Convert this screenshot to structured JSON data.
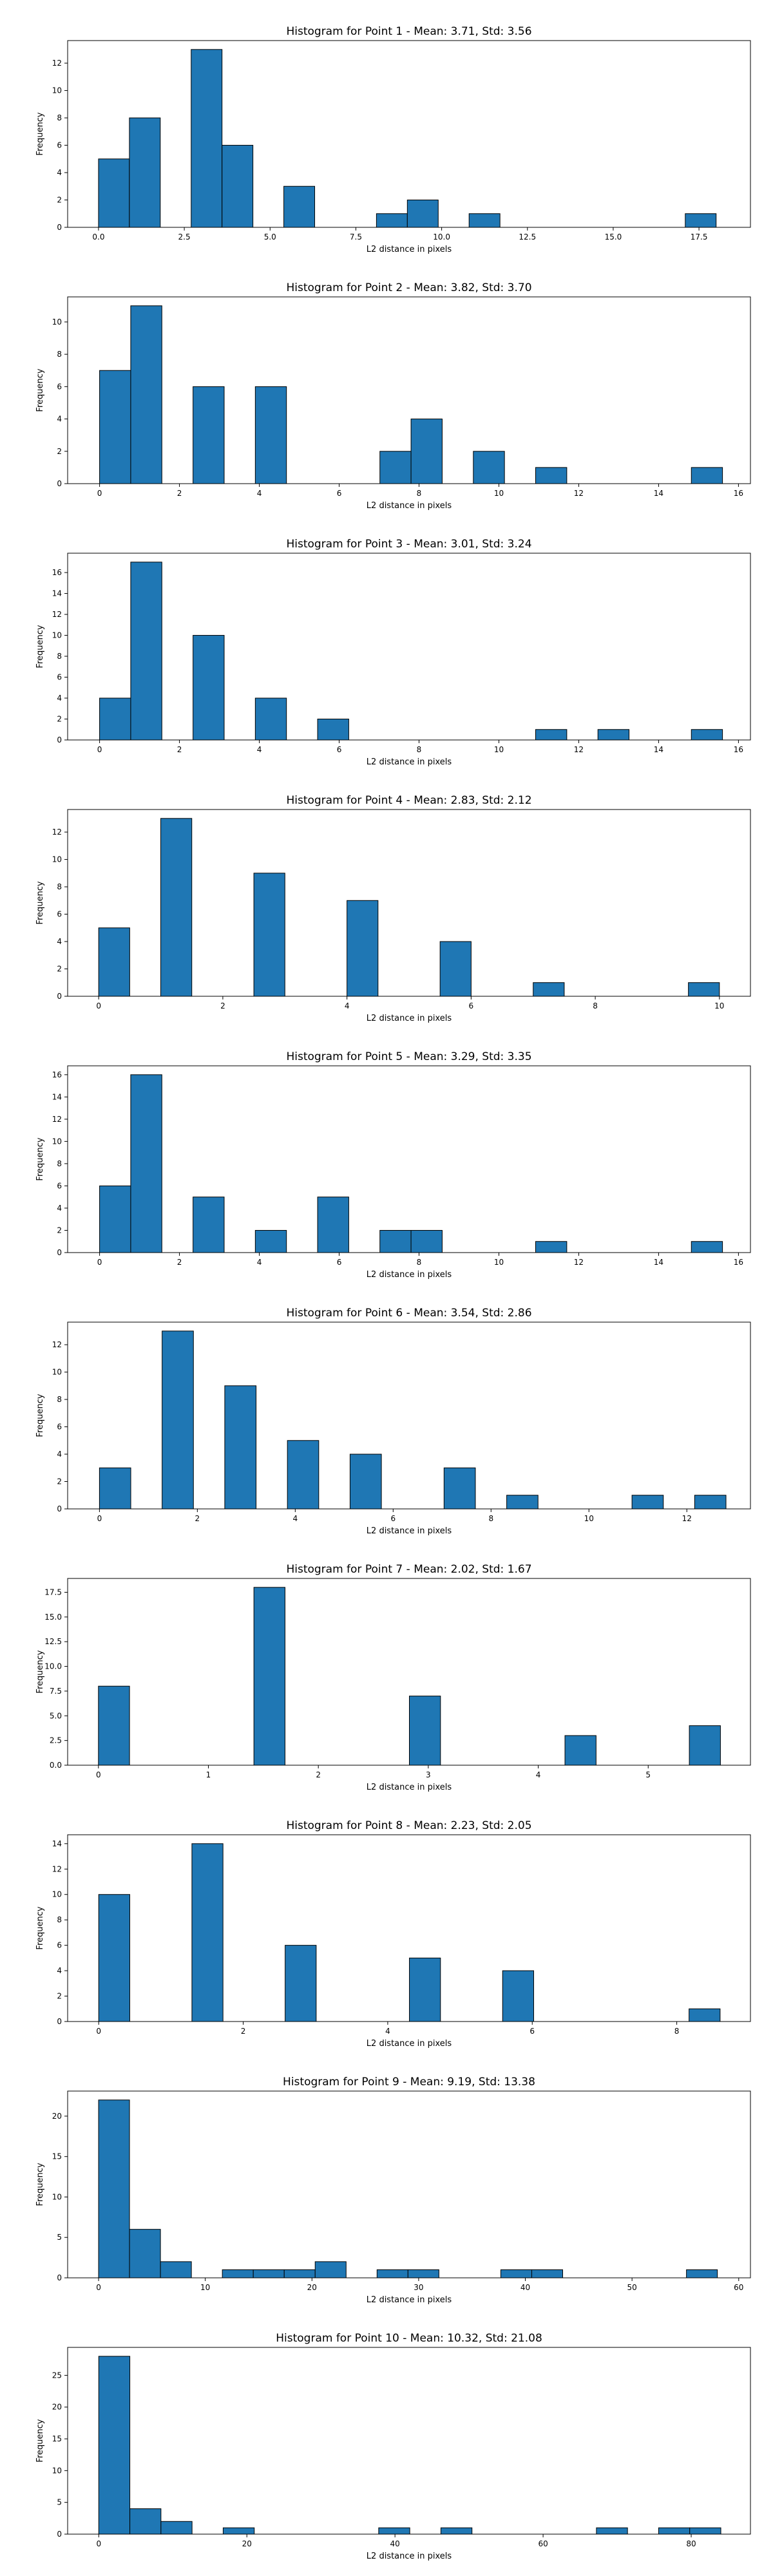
{
  "colors": {
    "bar_fill": "#1f77b4",
    "bar_edge": "#000000"
  },
  "chart_data": [
    {
      "type": "bar",
      "title": "Histogram for Point 1 - Mean: 3.71, Std: 3.56",
      "xlabel": "L2 distance in pixels",
      "ylabel": "Frequency",
      "xlim": [
        -0.9,
        19.0
      ],
      "ylim": [
        0,
        13.65
      ],
      "xticks": [
        0,
        2.5,
        5,
        7.5,
        10,
        12.5,
        15,
        17.5
      ],
      "xtick_labels": [
        "0.0",
        "2.5",
        "5.0",
        "7.5",
        "10.0",
        "12.5",
        "15.0",
        "17.5"
      ],
      "yticks": [
        0,
        2,
        4,
        6,
        8,
        10,
        12
      ],
      "ytick_labels": [
        "0",
        "2",
        "4",
        "6",
        "8",
        "10",
        "12"
      ],
      "bins": [
        {
          "x0": 0.0,
          "x1": 0.9,
          "count": 5
        },
        {
          "x0": 0.9,
          "x1": 1.8,
          "count": 8
        },
        {
          "x0": 2.7,
          "x1": 3.6,
          "count": 13
        },
        {
          "x0": 3.6,
          "x1": 4.5,
          "count": 6
        },
        {
          "x0": 5.4,
          "x1": 6.3,
          "count": 3
        },
        {
          "x0": 8.1,
          "x1": 9.0,
          "count": 1
        },
        {
          "x0": 9.0,
          "x1": 9.9,
          "count": 2
        },
        {
          "x0": 10.8,
          "x1": 11.7,
          "count": 1
        },
        {
          "x0": 17.1,
          "x1": 18.0,
          "count": 1
        }
      ]
    },
    {
      "type": "bar",
      "title": "Histogram for Point 2 - Mean: 3.82, Std: 3.70",
      "xlabel": "L2 distance in pixels",
      "ylabel": "Frequency",
      "xlim": [
        -0.8,
        16.3
      ],
      "ylim": [
        0,
        11.55
      ],
      "xticks": [
        0,
        2,
        4,
        6,
        8,
        10,
        12,
        14,
        16
      ],
      "xtick_labels": [
        "0",
        "2",
        "4",
        "6",
        "8",
        "10",
        "12",
        "14",
        "16"
      ],
      "yticks": [
        0,
        2,
        4,
        6,
        8,
        10
      ],
      "ytick_labels": [
        "0",
        "2",
        "4",
        "6",
        "8",
        "10"
      ],
      "bins": [
        {
          "x0": 0.0,
          "x1": 0.78,
          "count": 7
        },
        {
          "x0": 0.78,
          "x1": 1.56,
          "count": 11
        },
        {
          "x0": 2.34,
          "x1": 3.12,
          "count": 6
        },
        {
          "x0": 3.9,
          "x1": 4.68,
          "count": 6
        },
        {
          "x0": 7.02,
          "x1": 7.8,
          "count": 2
        },
        {
          "x0": 7.8,
          "x1": 8.58,
          "count": 4
        },
        {
          "x0": 9.36,
          "x1": 10.14,
          "count": 2
        },
        {
          "x0": 10.92,
          "x1": 11.7,
          "count": 1
        },
        {
          "x0": 14.82,
          "x1": 15.6,
          "count": 1
        }
      ]
    },
    {
      "type": "bar",
      "title": "Histogram for Point 3 - Mean: 3.01, Std: 3.24",
      "xlabel": "L2 distance in pixels",
      "ylabel": "Frequency",
      "xlim": [
        -0.8,
        16.3
      ],
      "ylim": [
        0,
        17.85
      ],
      "xticks": [
        0,
        2,
        4,
        6,
        8,
        10,
        12,
        14,
        16
      ],
      "xtick_labels": [
        "0",
        "2",
        "4",
        "6",
        "8",
        "10",
        "12",
        "14",
        "16"
      ],
      "yticks": [
        0,
        2,
        4,
        6,
        8,
        10,
        12,
        14,
        16
      ],
      "ytick_labels": [
        "0",
        "2",
        "4",
        "6",
        "8",
        "10",
        "12",
        "14",
        "16"
      ],
      "bins": [
        {
          "x0": 0.0,
          "x1": 0.78,
          "count": 4
        },
        {
          "x0": 0.78,
          "x1": 1.56,
          "count": 17
        },
        {
          "x0": 2.34,
          "x1": 3.12,
          "count": 10
        },
        {
          "x0": 3.9,
          "x1": 4.68,
          "count": 4
        },
        {
          "x0": 5.46,
          "x1": 6.24,
          "count": 2
        },
        {
          "x0": 10.92,
          "x1": 11.7,
          "count": 1
        },
        {
          "x0": 12.48,
          "x1": 13.26,
          "count": 1
        },
        {
          "x0": 14.82,
          "x1": 15.6,
          "count": 1
        }
      ]
    },
    {
      "type": "bar",
      "title": "Histogram for Point 4 - Mean: 2.83, Std: 2.12",
      "xlabel": "L2 distance in pixels",
      "ylabel": "Frequency",
      "xlim": [
        -0.5,
        10.5
      ],
      "ylim": [
        0,
        13.65
      ],
      "xticks": [
        0,
        2,
        4,
        6,
        8,
        10
      ],
      "xtick_labels": [
        "0",
        "2",
        "4",
        "6",
        "8",
        "10"
      ],
      "yticks": [
        0,
        2,
        4,
        6,
        8,
        10,
        12
      ],
      "ytick_labels": [
        "0",
        "2",
        "4",
        "6",
        "8",
        "10",
        "12"
      ],
      "bins": [
        {
          "x0": 0.0,
          "x1": 0.5,
          "count": 5
        },
        {
          "x0": 1.0,
          "x1": 1.5,
          "count": 13
        },
        {
          "x0": 2.5,
          "x1": 3.0,
          "count": 9
        },
        {
          "x0": 4.0,
          "x1": 4.5,
          "count": 7
        },
        {
          "x0": 5.5,
          "x1": 6.0,
          "count": 4
        },
        {
          "x0": 7.0,
          "x1": 7.5,
          "count": 1
        },
        {
          "x0": 9.5,
          "x1": 10.0,
          "count": 1
        }
      ]
    },
    {
      "type": "bar",
      "title": "Histogram for Point 5 - Mean: 3.29, Std: 3.35",
      "xlabel": "L2 distance in pixels",
      "ylabel": "Frequency",
      "xlim": [
        -0.8,
        16.3
      ],
      "ylim": [
        0,
        16.8
      ],
      "xticks": [
        0,
        2,
        4,
        6,
        8,
        10,
        12,
        14,
        16
      ],
      "xtick_labels": [
        "0",
        "2",
        "4",
        "6",
        "8",
        "10",
        "12",
        "14",
        "16"
      ],
      "yticks": [
        0,
        2,
        4,
        6,
        8,
        10,
        12,
        14,
        16
      ],
      "ytick_labels": [
        "0",
        "2",
        "4",
        "6",
        "8",
        "10",
        "12",
        "14",
        "16"
      ],
      "bins": [
        {
          "x0": 0.0,
          "x1": 0.78,
          "count": 6
        },
        {
          "x0": 0.78,
          "x1": 1.56,
          "count": 16
        },
        {
          "x0": 2.34,
          "x1": 3.12,
          "count": 5
        },
        {
          "x0": 3.9,
          "x1": 4.68,
          "count": 2
        },
        {
          "x0": 5.46,
          "x1": 6.24,
          "count": 5
        },
        {
          "x0": 7.02,
          "x1": 7.8,
          "count": 2
        },
        {
          "x0": 7.8,
          "x1": 8.58,
          "count": 2
        },
        {
          "x0": 10.92,
          "x1": 11.7,
          "count": 1
        },
        {
          "x0": 14.82,
          "x1": 15.6,
          "count": 1
        }
      ]
    },
    {
      "type": "bar",
      "title": "Histogram for Point 6 - Mean: 3.54, Std: 2.86",
      "xlabel": "L2 distance in pixels",
      "ylabel": "Frequency",
      "xlim": [
        -0.65,
        13.3
      ],
      "ylim": [
        0,
        13.65
      ],
      "xticks": [
        0,
        2,
        4,
        6,
        8,
        10,
        12
      ],
      "xtick_labels": [
        "0",
        "2",
        "4",
        "6",
        "8",
        "10",
        "12"
      ],
      "yticks": [
        0,
        2,
        4,
        6,
        8,
        10,
        12
      ],
      "ytick_labels": [
        "0",
        "2",
        "4",
        "6",
        "8",
        "10",
        "12"
      ],
      "bins": [
        {
          "x0": 0.0,
          "x1": 0.64,
          "count": 3
        },
        {
          "x0": 1.28,
          "x1": 1.92,
          "count": 13
        },
        {
          "x0": 2.56,
          "x1": 3.2,
          "count": 9
        },
        {
          "x0": 3.84,
          "x1": 4.48,
          "count": 5
        },
        {
          "x0": 5.12,
          "x1": 5.76,
          "count": 4
        },
        {
          "x0": 7.04,
          "x1": 7.68,
          "count": 3
        },
        {
          "x0": 8.32,
          "x1": 8.96,
          "count": 1
        },
        {
          "x0": 10.88,
          "x1": 11.52,
          "count": 1
        },
        {
          "x0": 12.16,
          "x1": 12.8,
          "count": 1
        }
      ]
    },
    {
      "type": "bar",
      "title": "Histogram for Point 7 - Mean: 2.02, Std: 1.67",
      "xlabel": "L2 distance in pixels",
      "ylabel": "Frequency",
      "xlim": [
        -0.28,
        5.93
      ],
      "ylim": [
        0,
        18.9
      ],
      "xticks": [
        0,
        1,
        2,
        3,
        4,
        5
      ],
      "xtick_labels": [
        "0",
        "1",
        "2",
        "3",
        "4",
        "5"
      ],
      "yticks": [
        0,
        2.5,
        5,
        7.5,
        10,
        12.5,
        15,
        17.5
      ],
      "ytick_labels": [
        "0.0",
        "2.5",
        "5.0",
        "7.5",
        "10.0",
        "12.5",
        "15.0",
        "17.5"
      ],
      "bins": [
        {
          "x0": 0.0,
          "x1": 0.283,
          "count": 8
        },
        {
          "x0": 1.414,
          "x1": 1.697,
          "count": 18
        },
        {
          "x0": 2.828,
          "x1": 3.111,
          "count": 7
        },
        {
          "x0": 4.243,
          "x1": 4.526,
          "count": 3
        },
        {
          "x0": 5.374,
          "x1": 5.657,
          "count": 4
        }
      ]
    },
    {
      "type": "bar",
      "title": "Histogram for Point 8 - Mean: 2.23, Std: 2.05",
      "xlabel": "L2 distance in pixels",
      "ylabel": "Frequency",
      "xlim": [
        -0.43,
        9.02
      ],
      "ylim": [
        0,
        14.7
      ],
      "xticks": [
        0,
        2,
        4,
        6,
        8
      ],
      "xtick_labels": [
        "0",
        "2",
        "4",
        "6",
        "8"
      ],
      "yticks": [
        0,
        2,
        4,
        6,
        8,
        10,
        12,
        14
      ],
      "ytick_labels": [
        "0",
        "2",
        "4",
        "6",
        "8",
        "10",
        "12",
        "14"
      ],
      "bins": [
        {
          "x0": 0.0,
          "x1": 0.43,
          "count": 10
        },
        {
          "x0": 1.29,
          "x1": 1.72,
          "count": 14
        },
        {
          "x0": 2.58,
          "x1": 3.01,
          "count": 6
        },
        {
          "x0": 4.3,
          "x1": 4.73,
          "count": 5
        },
        {
          "x0": 5.59,
          "x1": 6.02,
          "count": 4
        },
        {
          "x0": 8.17,
          "x1": 8.6,
          "count": 1
        }
      ]
    },
    {
      "type": "bar",
      "title": "Histogram for Point 9 - Mean: 9.19, Std: 13.38",
      "xlabel": "L2 distance in pixels",
      "ylabel": "Frequency",
      "xlim": [
        -2.9,
        61.1
      ],
      "ylim": [
        0,
        23.1
      ],
      "xticks": [
        0,
        10,
        20,
        30,
        40,
        50,
        60
      ],
      "xtick_labels": [
        "0",
        "10",
        "20",
        "30",
        "40",
        "50",
        "60"
      ],
      "yticks": [
        0,
        5,
        10,
        15,
        20
      ],
      "ytick_labels": [
        "0",
        "5",
        "10",
        "15",
        "20"
      ],
      "bins": [
        {
          "x0": 0.0,
          "x1": 2.9,
          "count": 22
        },
        {
          "x0": 2.9,
          "x1": 5.8,
          "count": 6
        },
        {
          "x0": 5.8,
          "x1": 8.7,
          "count": 2
        },
        {
          "x0": 11.6,
          "x1": 14.5,
          "count": 1
        },
        {
          "x0": 14.5,
          "x1": 17.4,
          "count": 1
        },
        {
          "x0": 17.4,
          "x1": 20.3,
          "count": 1
        },
        {
          "x0": 20.3,
          "x1": 23.2,
          "count": 2
        },
        {
          "x0": 26.1,
          "x1": 29.0,
          "count": 1
        },
        {
          "x0": 29.0,
          "x1": 31.9,
          "count": 1
        },
        {
          "x0": 37.7,
          "x1": 40.6,
          "count": 1
        },
        {
          "x0": 40.6,
          "x1": 43.5,
          "count": 1
        },
        {
          "x0": 55.1,
          "x1": 58.0,
          "count": 1
        }
      ]
    },
    {
      "type": "bar",
      "title": "Histogram for Point 10 - Mean: 10.32, Std: 21.08",
      "xlabel": "L2 distance in pixels",
      "ylabel": "Frequency",
      "xlim": [
        -4.2,
        88.0
      ],
      "ylim": [
        0,
        29.4
      ],
      "xticks": [
        0,
        20,
        40,
        60,
        80
      ],
      "xtick_labels": [
        "0",
        "20",
        "40",
        "60",
        "80"
      ],
      "yticks": [
        0,
        5,
        10,
        15,
        20,
        25
      ],
      "ytick_labels": [
        "0",
        "5",
        "10",
        "15",
        "20",
        "25"
      ],
      "bins": [
        {
          "x0": 0.0,
          "x1": 4.2,
          "count": 28
        },
        {
          "x0": 4.2,
          "x1": 8.4,
          "count": 4
        },
        {
          "x0": 8.4,
          "x1": 12.6,
          "count": 2
        },
        {
          "x0": 16.8,
          "x1": 21.0,
          "count": 1
        },
        {
          "x0": 37.8,
          "x1": 42.0,
          "count": 1
        },
        {
          "x0": 46.2,
          "x1": 50.4,
          "count": 1
        },
        {
          "x0": 67.2,
          "x1": 71.4,
          "count": 1
        },
        {
          "x0": 75.6,
          "x1": 79.8,
          "count": 1
        },
        {
          "x0": 79.8,
          "x1": 84.0,
          "count": 1
        }
      ]
    }
  ]
}
